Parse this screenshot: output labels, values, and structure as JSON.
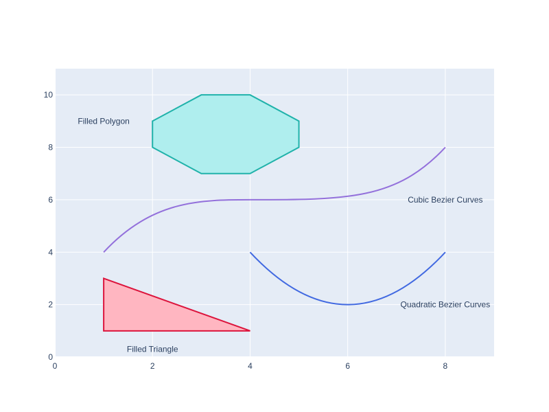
{
  "chart_data": {
    "type": "scatter",
    "title": "",
    "xlabel": "",
    "ylabel": "",
    "xlim": [
      0,
      9
    ],
    "ylim": [
      0,
      11
    ],
    "x_ticks": [
      0,
      2,
      4,
      6,
      8
    ],
    "y_ticks": [
      0,
      2,
      4,
      6,
      8,
      10
    ],
    "grid": true,
    "plot_background": "#E5ECF6",
    "grid_color": "#ffffff",
    "shapes": [
      {
        "kind": "polygon",
        "points": [
          [
            2,
            8
          ],
          [
            2,
            9
          ],
          [
            3,
            10
          ],
          [
            4,
            10
          ],
          [
            5,
            9
          ],
          [
            5,
            8
          ],
          [
            4,
            7
          ],
          [
            3,
            7
          ]
        ],
        "fill": "#AFEEEE",
        "stroke": "#20B2AA"
      },
      {
        "kind": "triangle",
        "points": [
          [
            1,
            1
          ],
          [
            1,
            3
          ],
          [
            4,
            1
          ]
        ],
        "fill": "#FFB6C1",
        "stroke": "#DC143C"
      },
      {
        "kind": "cubic_bezier",
        "points": [
          [
            1,
            4
          ],
          [
            2,
            6
          ],
          [
            3,
            6
          ],
          [
            4,
            6
          ]
        ],
        "stroke": "#9370DB"
      },
      {
        "kind": "cubic_bezier",
        "points": [
          [
            4,
            6
          ],
          [
            6,
            6
          ],
          [
            7,
            6
          ],
          [
            8,
            8
          ]
        ],
        "stroke": "#9370DB"
      },
      {
        "kind": "quadratic_bezier",
        "points": [
          [
            4,
            4
          ],
          [
            6,
            0
          ],
          [
            8,
            4
          ]
        ],
        "stroke": "#4169E1"
      }
    ],
    "annotations": [
      {
        "text": "Filled Polygon",
        "x": 1,
        "y": 9
      },
      {
        "text": "Filled Triangle",
        "x": 2,
        "y": 0.3
      },
      {
        "text": "Cubic Bezier Curves",
        "x": 8,
        "y": 6
      },
      {
        "text": "Quadratic Bezier Curves",
        "x": 8,
        "y": 2
      }
    ]
  }
}
